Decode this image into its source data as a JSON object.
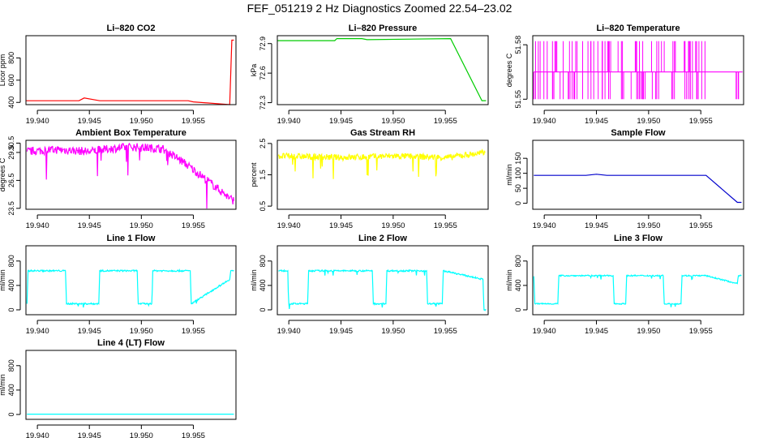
{
  "title": "FEF_051219  2 Hz Diagnostics Zoomed 22.54–23.02",
  "colors": {
    "red": "#ff0000",
    "green": "#00cc00",
    "magenta": "#ff00ff",
    "yellow": "#ffff00",
    "blue": "#0000cc",
    "cyan": "#00ffff"
  },
  "x_ticks": [
    "19.940",
    "19.945",
    "19.950",
    "19.955"
  ],
  "chart_data": [
    {
      "type": "line",
      "title": "Li–820 CO2",
      "ylabel": "Licor ppm",
      "xlabel": "",
      "xlim": [
        19.9389,
        19.9591
      ],
      "ylim": [
        380,
        1000
      ],
      "yticks": [
        400,
        600,
        800
      ],
      "color": "red",
      "noise": 0,
      "x": [
        19.9389,
        19.944,
        19.9445,
        19.946,
        19.9545,
        19.955,
        19.9585,
        19.9587,
        19.9589
      ],
      "y": [
        415,
        415,
        440,
        415,
        415,
        405,
        380,
        960,
        960
      ]
    },
    {
      "type": "line",
      "title": "Li–820 Pressure",
      "ylabel": "kPa",
      "xlabel": "",
      "xlim": [
        19.9389,
        19.9591
      ],
      "ylim": [
        72.28,
        72.98
      ],
      "yticks": [
        72.3,
        72.6,
        72.9
      ],
      "color": "green",
      "noise": 0,
      "x": [
        19.9389,
        19.9444,
        19.9446,
        19.947,
        19.9475,
        19.9555,
        19.9585,
        19.9589
      ],
      "y": [
        72.93,
        72.93,
        72.95,
        72.95,
        72.94,
        72.95,
        72.32,
        72.32
      ]
    },
    {
      "type": "line",
      "title": "Li–820 Temperature",
      "ylabel": "degrees C",
      "xlabel": "",
      "xlim": [
        19.9389,
        19.9591
      ],
      "ylim": [
        51.547,
        51.585
      ],
      "yticks": [
        51.55,
        51.58
      ],
      "color": "magenta",
      "noise": 0,
      "x": [
        19.939,
        19.9555,
        19.959
      ],
      "y": [
        51.565,
        51.565,
        51.565
      ]
    },
    {
      "type": "line",
      "title": "Ambient Box Temperature",
      "ylabel": "degrees C",
      "xlabel": "",
      "xlim": [
        19.9389,
        19.9591
      ],
      "ylim": [
        23.4,
        30.8
      ],
      "yticks": [
        23.5,
        26.5,
        29.5,
        30.5
      ],
      "color": "magenta",
      "noise": 0.9,
      "x": [
        19.939,
        19.942,
        19.945,
        19.947,
        19.949,
        19.952,
        19.954,
        19.956,
        19.9585,
        19.9589
      ],
      "y": [
        29.6,
        29.8,
        29.6,
        29.9,
        30.1,
        29.9,
        28.5,
        26.8,
        24.6,
        24.3
      ]
    },
    {
      "type": "line",
      "title": "Gas Stream RH",
      "ylabel": "percent",
      "xlabel": "",
      "xlim": [
        19.9389,
        19.9591
      ],
      "ylim": [
        0.4,
        2.6
      ],
      "yticks": [
        0.5,
        1.5,
        2.5
      ],
      "color": "yellow",
      "noise": 0.2,
      "x": [
        19.939,
        19.945,
        19.95,
        19.9555,
        19.956,
        19.9588
      ],
      "y": [
        2.1,
        2.05,
        2.1,
        2.05,
        2.1,
        2.2
      ]
    },
    {
      "type": "line",
      "title": "Sample Flow",
      "ylabel": "ml/min",
      "xlabel": "",
      "xlim": [
        19.9389,
        19.9591
      ],
      "ylim": [
        -20,
        210
      ],
      "yticks": [
        0,
        50,
        100,
        150
      ],
      "color": "blue",
      "noise": 0,
      "x": [
        19.939,
        19.944,
        19.945,
        19.946,
        19.9555,
        19.9585,
        19.9589
      ],
      "y": [
        93,
        93,
        97,
        93,
        93,
        3,
        3
      ]
    },
    {
      "type": "line",
      "title": "Line 1 Flow",
      "ylabel": "ml/min",
      "xlabel": "",
      "xlim": [
        19.9389,
        19.9591
      ],
      "ylim": [
        -80,
        1050
      ],
      "yticks": [
        0,
        400,
        800
      ],
      "color": "cyan",
      "noise": 25,
      "x": [
        19.939,
        19.9391,
        19.9427,
        19.9428,
        19.9459,
        19.946,
        19.9496,
        19.9497,
        19.951,
        19.9511,
        19.9547,
        19.9548,
        19.9585,
        19.9586,
        19.9589
      ],
      "y": [
        100,
        640,
        640,
        100,
        100,
        640,
        640,
        100,
        100,
        640,
        640,
        100,
        500,
        640,
        640
      ]
    },
    {
      "type": "line",
      "title": "Line 2 Flow",
      "ylabel": "ml/min",
      "xlabel": "",
      "xlim": [
        19.9389,
        19.9591
      ],
      "ylim": [
        -80,
        1050
      ],
      "yticks": [
        0,
        400,
        800
      ],
      "color": "cyan",
      "noise": 25,
      "x": [
        19.939,
        19.9399,
        19.94,
        19.9418,
        19.9419,
        19.948,
        19.9481,
        19.9493,
        19.9494,
        19.9532,
        19.9533,
        19.9547,
        19.9548,
        19.9586,
        19.9587,
        19.9589
      ],
      "y": [
        640,
        640,
        100,
        100,
        640,
        640,
        100,
        100,
        640,
        640,
        100,
        100,
        640,
        500,
        0,
        0
      ]
    },
    {
      "type": "line",
      "title": "Line 3 Flow",
      "ylabel": "ml/min",
      "xlabel": "",
      "xlim": [
        19.9389,
        19.9591
      ],
      "ylim": [
        -80,
        1050
      ],
      "yticks": [
        0,
        400,
        800
      ],
      "color": "cyan",
      "noise": 20,
      "x": [
        19.939,
        19.9391,
        19.9392,
        19.9413,
        19.9414,
        19.9466,
        19.9467,
        19.9478,
        19.9479,
        19.9514,
        19.9515,
        19.9531,
        19.9532,
        19.9555,
        19.9585,
        19.9586,
        19.9589
      ],
      "y": [
        550,
        100,
        100,
        100,
        560,
        560,
        100,
        100,
        560,
        560,
        100,
        100,
        560,
        560,
        430,
        560,
        560
      ]
    },
    {
      "type": "line",
      "title": "Line 4 (LT) Flow",
      "ylabel": "ml/min",
      "xlabel": "",
      "xlim": [
        19.9389,
        19.9591
      ],
      "ylim": [
        -80,
        1050
      ],
      "yticks": [
        0,
        400,
        800
      ],
      "color": "cyan",
      "noise": 0,
      "x": [
        19.939,
        19.9589
      ],
      "y": [
        5,
        5
      ]
    }
  ]
}
